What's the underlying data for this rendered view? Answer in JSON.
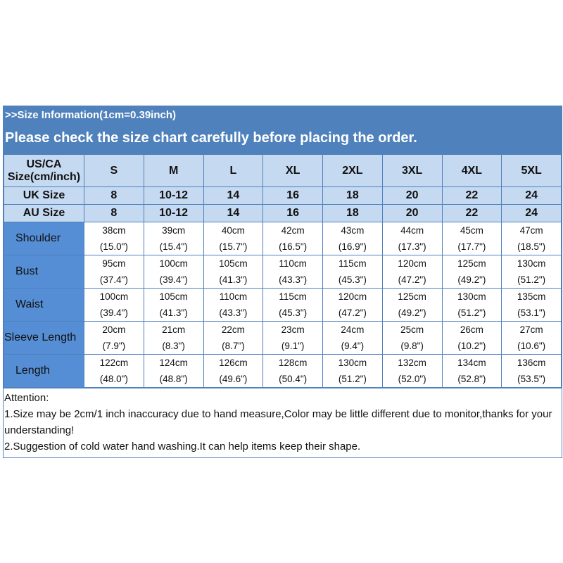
{
  "banner": {
    "line1": ">>Size Information(1cm=0.39inch)",
    "line2": "Please check the size chart carefully before placing the order."
  },
  "colors": {
    "banner": "#4f81bd",
    "header_cells": "#c5d9f1",
    "label_cells": "#558ed5"
  },
  "header": {
    "label": "US/CA Size(cm/inch)",
    "sizes": [
      "S",
      "M",
      "L",
      "XL",
      "2XL",
      "3XL",
      "4XL",
      "5XL"
    ]
  },
  "uk": {
    "label": "UK Size",
    "values": [
      "8",
      "10-12",
      "14",
      "16",
      "18",
      "20",
      "22",
      "24"
    ]
  },
  "au": {
    "label": "AU Size",
    "values": [
      "8",
      "10-12",
      "14",
      "16",
      "18",
      "20",
      "22",
      "24"
    ]
  },
  "rows": [
    {
      "label": "Shoulder",
      "cm": [
        "38cm",
        "39cm",
        "40cm",
        "42cm",
        "43cm",
        "44cm",
        "45cm",
        "47cm"
      ],
      "inch": [
        "(15.0\")",
        "(15.4\")",
        "(15.7\")",
        "(16.5\")",
        "(16.9\")",
        "(17.3\")",
        "(17.7\")",
        "(18.5\")"
      ]
    },
    {
      "label": "Bust",
      "cm": [
        "95cm",
        "100cm",
        "105cm",
        "110cm",
        "115cm",
        "120cm",
        "125cm",
        "130cm"
      ],
      "inch": [
        "(37.4\")",
        "(39.4\")",
        "(41.3\")",
        "(43.3\")",
        "(45.3\")",
        "(47.2\")",
        "(49.2\")",
        "(51.2\")"
      ]
    },
    {
      "label": "Waist",
      "cm": [
        "100cm",
        "105cm",
        "110cm",
        "115cm",
        "120cm",
        "125cm",
        "130cm",
        "135cm"
      ],
      "inch": [
        "(39.4\")",
        "(41.3\")",
        "(43.3\")",
        "(45.3\")",
        "(47.2\")",
        "(49.2\")",
        "(51.2\")",
        "(53.1\")"
      ]
    },
    {
      "label": "Sleeve Length",
      "cm": [
        "20cm",
        "21cm",
        "22cm",
        "23cm",
        "24cm",
        "25cm",
        "26cm",
        "27cm"
      ],
      "inch": [
        "(7.9\")",
        "(8.3\")",
        "(8.7\")",
        "(9.1\")",
        "(9.4\")",
        "(9.8\")",
        "(10.2\")",
        "(10.6\")"
      ]
    },
    {
      "label": "Length",
      "cm": [
        "122cm",
        "124cm",
        "126cm",
        "128cm",
        "130cm",
        "132cm",
        "134cm",
        "136cm"
      ],
      "inch": [
        "(48.0\")",
        "(48.8\")",
        "(49.6\")",
        "(50.4\")",
        "(51.2\")",
        "(52.0\")",
        "(52.8\")",
        "(53.5\")"
      ]
    }
  ],
  "attention": {
    "title": "Attention:",
    "notes": [
      "1.Size may be 2cm/1 inch inaccuracy due to hand measure,Color may be little different due to monitor,thanks for your understanding!",
      "2.Suggestion of cold water hand washing.It can help items keep their shape."
    ]
  }
}
